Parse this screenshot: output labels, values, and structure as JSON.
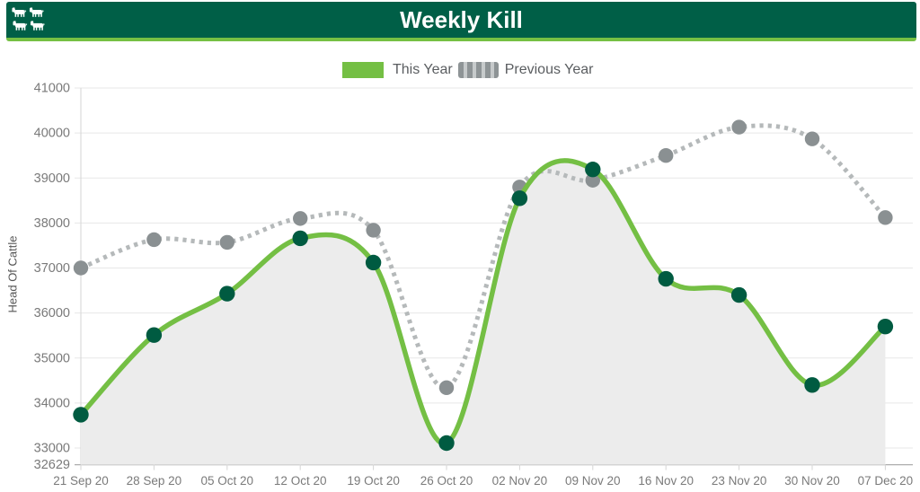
{
  "header": {
    "title": "Weekly Kill"
  },
  "icons": {
    "logo": "cattle-icon"
  },
  "colors": {
    "header_bg": "#005F47",
    "header_border": "#76C043",
    "this_year_line": "#74BF44",
    "this_year_marker": "#005B41",
    "prev_year_line": "#B5B9BA",
    "prev_year_marker": "#8A9092",
    "area_fill": "#ECECEC",
    "grid": "#E7E7E7",
    "axis_line": "#D5D5D5",
    "baseline": "#ADADAD",
    "tick_text": "#7A7A7A",
    "legend_text": "#5A5D60"
  },
  "chart_data": {
    "type": "line",
    "title": "Weekly Kill",
    "xlabel": "",
    "ylabel": "Head Of Cattle",
    "categories": [
      "21 Sep 20",
      "28 Sep 20",
      "05 Oct 20",
      "12 Oct 20",
      "19 Oct 20",
      "26 Oct 20",
      "02 Nov 20",
      "09 Nov 20",
      "16 Nov 20",
      "23 Nov 20",
      "30 Nov 20",
      "07 Dec 20"
    ],
    "series": [
      {
        "name": "This Year",
        "style": "solid",
        "area": true,
        "values": [
          33740,
          35510,
          36430,
          37660,
          37120,
          33110,
          38550,
          39190,
          36760,
          36400,
          34400,
          35700
        ]
      },
      {
        "name": "Previous Year",
        "style": "dotted",
        "area": false,
        "values": [
          37000,
          37630,
          37570,
          38100,
          37840,
          34340,
          38800,
          38950,
          39500,
          40130,
          39870,
          38120
        ]
      }
    ],
    "yticks": [
      32629,
      33000,
      34000,
      35000,
      36000,
      37000,
      38000,
      39000,
      40000,
      41000
    ],
    "ylim": [
      32629,
      41000
    ],
    "grid": "horizontal",
    "legend_position": "top"
  }
}
